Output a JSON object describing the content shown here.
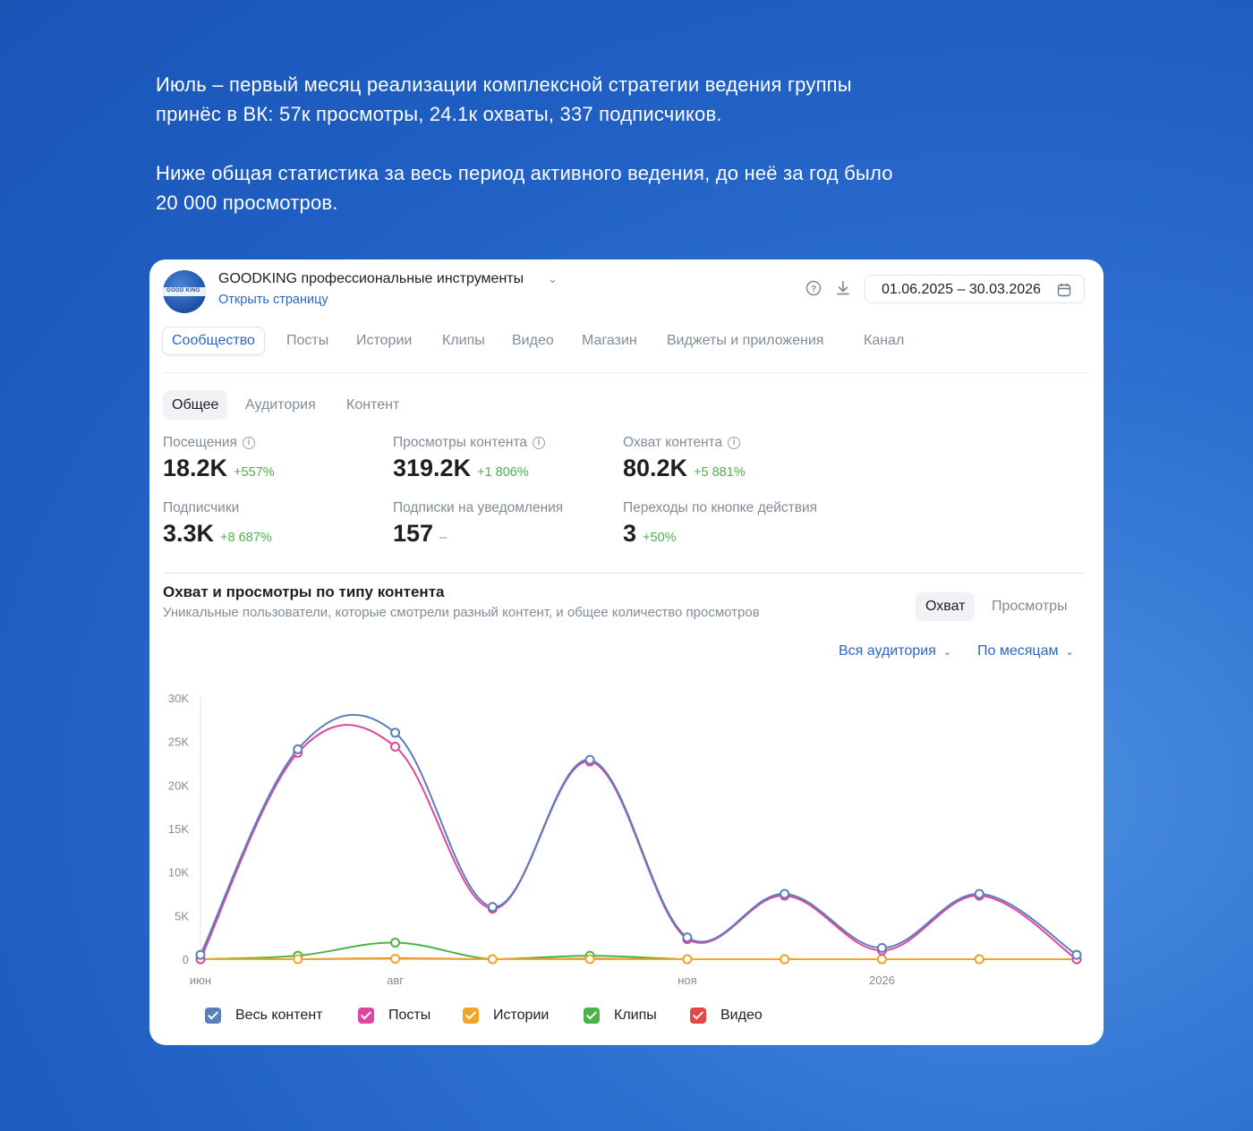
{
  "intro": {
    "p1": "Июль – первый месяц реализации комплексной стратегии ведения группы принёс в ВК: 57к просмотры, 24.1к охваты, 337 подписчиков.",
    "p2": "Ниже общая статистика за весь период активного ведения, до неё за год было 20 000 просмотров."
  },
  "header": {
    "group_name": "GOODKING профессиональные инструменты",
    "open_link": "Открыть страницу",
    "date_range": "01.06.2025 – 30.03.2026",
    "icons": [
      "help-icon",
      "download-icon",
      "calendar-icon",
      "chevron-down-icon"
    ]
  },
  "tabs": [
    {
      "label": "Сообщество",
      "active": true
    },
    {
      "label": "Посты"
    },
    {
      "label": "Истории"
    },
    {
      "label": "Клипы"
    },
    {
      "label": "Видео"
    },
    {
      "label": "Магазин"
    },
    {
      "label": "Виджеты и приложения"
    },
    {
      "label": "Канал"
    }
  ],
  "subtabs": [
    {
      "label": "Общее",
      "active": true
    },
    {
      "label": "Аудитория"
    },
    {
      "label": "Контент"
    }
  ],
  "metrics": [
    {
      "label": "Посещения",
      "value": "18.2K",
      "delta": "+557%",
      "info": true
    },
    {
      "label": "Просмотры контента",
      "value": "319.2K",
      "delta": "+1 806%",
      "info": true
    },
    {
      "label": "Охват контента",
      "value": "80.2K",
      "delta": "+5 881%",
      "info": true
    },
    {
      "label": "Подписчики",
      "value": "3.3K",
      "delta": "+8 687%"
    },
    {
      "label": "Подписки на уведомления",
      "value": "157",
      "delta": "–"
    },
    {
      "label": "Переходы по кнопке действия",
      "value": "3",
      "delta": "+50%"
    }
  ],
  "chart_section": {
    "title": "Охват и просмотры по типу контента",
    "subtitle": "Уникальные пользователи, которые смотрели разный контент, и общее количество просмотров",
    "toggle": [
      "Охват",
      "Просмотры"
    ],
    "toggle_active": "Охват",
    "audience_filter": "Вся аудитория",
    "period_filter": "По месяцам"
  },
  "chart_data": {
    "type": "line",
    "x": [
      "июн",
      "июл",
      "авг",
      "сен",
      "окт",
      "ноя",
      "дек",
      "2026",
      "фев",
      "мар"
    ],
    "x_tick_labels": {
      "0": "июн",
      "2": "авг",
      "5": "ноя",
      "7": "2026"
    },
    "y_ticks": [
      "0",
      "5K",
      "10K",
      "15K",
      "20K",
      "25K",
      "30K"
    ],
    "ylim": [
      0,
      30000
    ],
    "smooth": true,
    "series": [
      {
        "name": "Весь контент",
        "color": "#5b7fb9",
        "values": [
          500,
          24100,
          26000,
          6000,
          22900,
          2500,
          7500,
          1300,
          7500,
          500
        ]
      },
      {
        "name": "Посты",
        "color": "#e0459f",
        "values": [
          0,
          23700,
          24400,
          5800,
          22700,
          2300,
          7300,
          1000,
          7300,
          0
        ]
      },
      {
        "name": "Истории",
        "color": "#f2a52b",
        "values": [
          0,
          0,
          50,
          0,
          0,
          0,
          0,
          0,
          0,
          0
        ]
      },
      {
        "name": "Клипы",
        "color": "#4bb34b",
        "values": [
          0,
          400,
          1900,
          0,
          400,
          0,
          0,
          0,
          0,
          0
        ]
      },
      {
        "name": "Видео",
        "color": "#e64646",
        "values": [
          0,
          0,
          100,
          0,
          50,
          0,
          0,
          0,
          0,
          0
        ]
      }
    ],
    "legend_position": "bottom"
  }
}
